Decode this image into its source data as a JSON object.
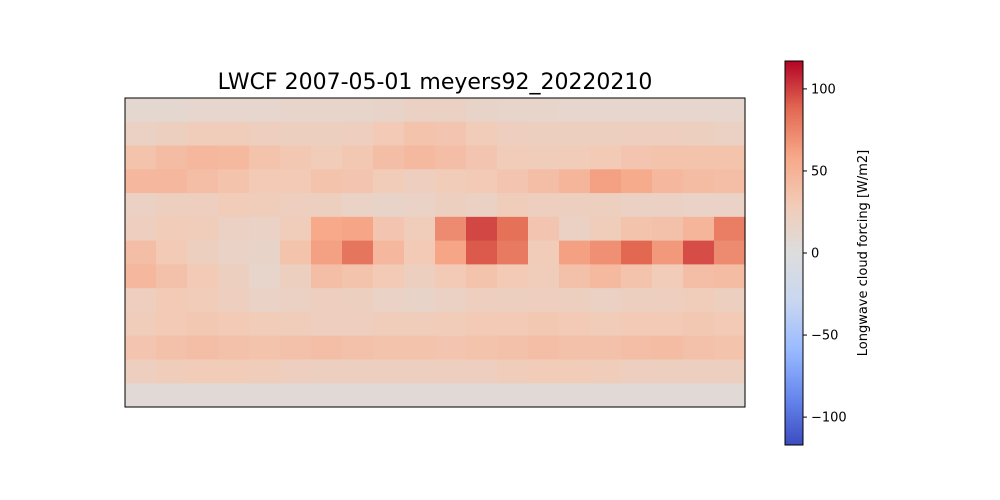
{
  "chart_data": {
    "type": "heatmap",
    "title": "LWCF 2007-05-01 meyers92_20220210",
    "colorbar": {
      "label": "Longwave cloud forcing [W/m2]",
      "range": [
        -117,
        117
      ],
      "ticks": [
        -100,
        -50,
        0,
        50,
        100
      ],
      "tick_labels": [
        "−100",
        "−50",
        "0",
        "50",
        "100"
      ],
      "colormap": "coolwarm",
      "colors": [
        "#3b4cc0",
        "#6788ee",
        "#9abbff",
        "#c9d7f0",
        "#dddddd",
        "#f2cbb7",
        "#f7a889",
        "#e26952",
        "#b40426"
      ]
    },
    "field_grid": {
      "description_rows": "latitude north to south",
      "rows": 13,
      "cols": 20,
      "values": [
        [
          10,
          10,
          12,
          12,
          12,
          14,
          14,
          14,
          16,
          20,
          20,
          16,
          14,
          14,
          12,
          12,
          12,
          12,
          12,
          12
        ],
        [
          20,
          22,
          26,
          26,
          24,
          22,
          22,
          24,
          30,
          36,
          34,
          28,
          24,
          22,
          22,
          22,
          24,
          24,
          22,
          20
        ],
        [
          36,
          42,
          46,
          44,
          36,
          32,
          28,
          32,
          40,
          44,
          40,
          34,
          28,
          26,
          28,
          30,
          34,
          36,
          36,
          36
        ],
        [
          46,
          46,
          40,
          36,
          30,
          30,
          36,
          34,
          28,
          24,
          28,
          30,
          34,
          40,
          48,
          62,
          56,
          46,
          42,
          40
        ],
        [
          20,
          22,
          24,
          28,
          26,
          24,
          22,
          18,
          16,
          18,
          22,
          20,
          26,
          24,
          22,
          22,
          20,
          20,
          18,
          18
        ],
        [
          24,
          28,
          26,
          20,
          18,
          26,
          58,
          60,
          34,
          26,
          72,
          98,
          84,
          34,
          20,
          26,
          36,
          38,
          48,
          78
        ],
        [
          40,
          30,
          22,
          18,
          16,
          36,
          62,
          82,
          46,
          30,
          60,
          92,
          80,
          28,
          62,
          70,
          88,
          66,
          96,
          72
        ],
        [
          46,
          38,
          30,
          22,
          14,
          22,
          40,
          36,
          30,
          22,
          30,
          36,
          30,
          26,
          38,
          44,
          36,
          28,
          40,
          42
        ],
        [
          24,
          30,
          28,
          24,
          18,
          20,
          24,
          22,
          18,
          16,
          20,
          24,
          22,
          24,
          22,
          20,
          22,
          24,
          26,
          22
        ],
        [
          26,
          30,
          32,
          30,
          28,
          26,
          24,
          24,
          26,
          26,
          28,
          30,
          30,
          32,
          30,
          28,
          30,
          30,
          32,
          30
        ],
        [
          34,
          38,
          40,
          38,
          36,
          38,
          40,
          38,
          36,
          36,
          34,
          36,
          38,
          40,
          38,
          38,
          40,
          42,
          38,
          36
        ],
        [
          24,
          26,
          28,
          28,
          26,
          24,
          22,
          22,
          22,
          22,
          24,
          24,
          26,
          28,
          28,
          26,
          24,
          22,
          22,
          22
        ],
        [
          6,
          6,
          6,
          6,
          6,
          6,
          6,
          6,
          6,
          6,
          6,
          6,
          6,
          6,
          6,
          6,
          6,
          6,
          6,
          6
        ]
      ]
    }
  }
}
